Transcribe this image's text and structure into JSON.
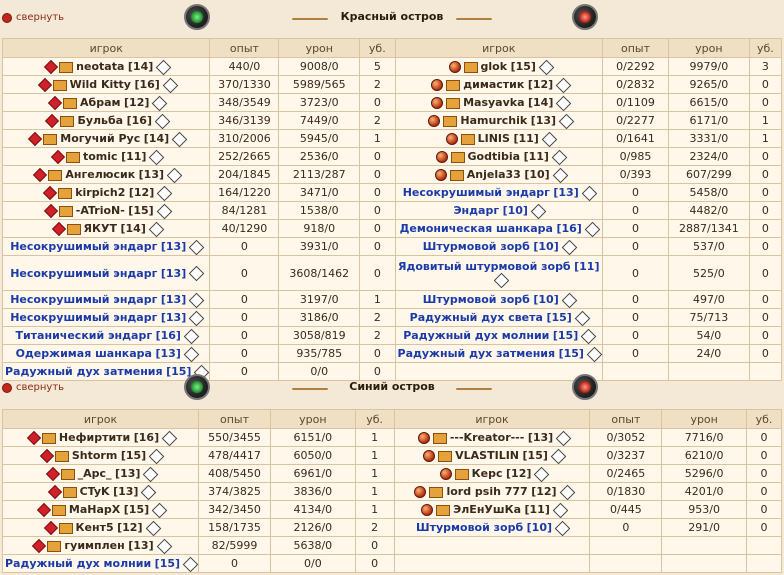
{
  "section1": {
    "collapse_label": "свернуть",
    "title": "Красный остров",
    "headers": [
      "игрок",
      "опыт",
      "урон",
      "уб.",
      "игрок",
      "опыт",
      "урон",
      "уб."
    ],
    "left": [
      {
        "name": "neotata",
        "level": "[14]",
        "exp": "440/0",
        "dmg": "9008/0",
        "kills": "5",
        "npc": false
      },
      {
        "name": "Wild Kitty",
        "level": "[16]",
        "exp": "370/1330",
        "dmg": "5989/565",
        "kills": "2",
        "npc": false
      },
      {
        "name": "Абрам",
        "level": "[12]",
        "exp": "348/3549",
        "dmg": "3723/0",
        "kills": "0",
        "npc": false
      },
      {
        "name": "Бульба",
        "level": "[16]",
        "exp": "346/3139",
        "dmg": "7449/0",
        "kills": "2",
        "npc": false
      },
      {
        "name": "Могучий Рус",
        "level": "[14]",
        "exp": "310/2006",
        "dmg": "5945/0",
        "kills": "1",
        "npc": false
      },
      {
        "name": "tomic",
        "level": "[11]",
        "exp": "252/2665",
        "dmg": "2536/0",
        "kills": "0",
        "npc": false
      },
      {
        "name": "Ангелюсик",
        "level": "[13]",
        "exp": "204/1845",
        "dmg": "2113/287",
        "kills": "0",
        "npc": false
      },
      {
        "name": "kirpich2",
        "level": "[12]",
        "exp": "164/1220",
        "dmg": "3471/0",
        "kills": "0",
        "npc": false
      },
      {
        "name": "-ATrioN-",
        "level": "[15]",
        "exp": "84/1281",
        "dmg": "1538/0",
        "kills": "0",
        "npc": false
      },
      {
        "name": "ЯКУТ",
        "level": "[14]",
        "exp": "40/1290",
        "dmg": "918/0",
        "kills": "0",
        "npc": false
      },
      {
        "name": "Несокрушимый эндарг",
        "level": "[13]",
        "exp": "0",
        "dmg": "3931/0",
        "kills": "0",
        "npc": true
      },
      {
        "name": "Несокрушимый эндарг",
        "level": "[13]",
        "exp": "0",
        "dmg": "3608/1462",
        "kills": "0",
        "npc": true
      },
      {
        "name": "Несокрушимый эндарг",
        "level": "[13]",
        "exp": "0",
        "dmg": "3197/0",
        "kills": "1",
        "npc": true
      },
      {
        "name": "Несокрушимый эндарг",
        "level": "[13]",
        "exp": "0",
        "dmg": "3186/0",
        "kills": "2",
        "npc": true
      },
      {
        "name": "Титанический эндарг",
        "level": "[16]",
        "exp": "0",
        "dmg": "3058/819",
        "kills": "2",
        "npc": true
      },
      {
        "name": "Одержимая шанкара",
        "level": "[13]",
        "exp": "0",
        "dmg": "935/785",
        "kills": "0",
        "npc": true
      },
      {
        "name": "Радужный дух затмения",
        "level": "[15]",
        "exp": "0",
        "dmg": "0/0",
        "kills": "0",
        "npc": true
      }
    ],
    "right": [
      {
        "name": "glok",
        "level": "[15]",
        "exp": "0/2292",
        "dmg": "9979/0",
        "kills": "3",
        "npc": false
      },
      {
        "name": "димастик",
        "level": "[12]",
        "exp": "0/2832",
        "dmg": "9265/0",
        "kills": "0",
        "npc": false
      },
      {
        "name": "Masyavka",
        "level": "[14]",
        "exp": "0/1109",
        "dmg": "6615/0",
        "kills": "0",
        "npc": false
      },
      {
        "name": "Hamurchik",
        "level": "[13]",
        "exp": "0/2277",
        "dmg": "6171/0",
        "kills": "1",
        "npc": false
      },
      {
        "name": "LINIS",
        "level": "[11]",
        "exp": "0/1641",
        "dmg": "3331/0",
        "kills": "1",
        "npc": false
      },
      {
        "name": "Godtibia",
        "level": "[11]",
        "exp": "0/985",
        "dmg": "2324/0",
        "kills": "0",
        "npc": false
      },
      {
        "name": "Anjela33",
        "level": "[10]",
        "exp": "0/393",
        "dmg": "607/299",
        "kills": "0",
        "npc": false
      },
      {
        "name": "Несокрушимый эндарг",
        "level": "[13]",
        "exp": "0",
        "dmg": "5458/0",
        "kills": "0",
        "npc": true
      },
      {
        "name": "Эндарг",
        "level": "[10]",
        "exp": "0",
        "dmg": "4482/0",
        "kills": "0",
        "npc": true
      },
      {
        "name": "Демоническая шанкара",
        "level": "[16]",
        "exp": "0",
        "dmg": "2887/1341",
        "kills": "0",
        "npc": true
      },
      {
        "name": "Штурмовой зорб",
        "level": "[10]",
        "exp": "0",
        "dmg": "537/0",
        "kills": "0",
        "npc": true
      },
      {
        "name": "Ядовитый штурмовой зорб",
        "level": "[11]",
        "exp": "0",
        "dmg": "525/0",
        "kills": "0",
        "npc": true
      },
      {
        "name": "Штурмовой зорб",
        "level": "[10]",
        "exp": "0",
        "dmg": "497/0",
        "kills": "0",
        "npc": true
      },
      {
        "name": "Радужный дух света",
        "level": "[15]",
        "exp": "0",
        "dmg": "75/713",
        "kills": "0",
        "npc": true
      },
      {
        "name": "Радужный дух молнии",
        "level": "[15]",
        "exp": "0",
        "dmg": "54/0",
        "kills": "0",
        "npc": true
      },
      {
        "name": "Радужный дух затмения",
        "level": "[15]",
        "exp": "0",
        "dmg": "24/0",
        "kills": "0",
        "npc": true
      }
    ]
  },
  "section2": {
    "collapse_label": "свернуть",
    "title": "Синий остров",
    "headers": [
      "игрок",
      "опыт",
      "урон",
      "уб.",
      "игрок",
      "опыт",
      "урон",
      "уб."
    ],
    "left": [
      {
        "name": "Нефиртити",
        "level": "[16]",
        "exp": "550/3455",
        "dmg": "6151/0",
        "kills": "1",
        "npc": false
      },
      {
        "name": "Shtorm",
        "level": "[15]",
        "exp": "478/4417",
        "dmg": "6050/0",
        "kills": "1",
        "npc": false
      },
      {
        "name": "_Apc_",
        "level": "[13]",
        "exp": "408/5450",
        "dmg": "6961/0",
        "kills": "1",
        "npc": false
      },
      {
        "name": "CTyK",
        "level": "[13]",
        "exp": "374/3825",
        "dmg": "3836/0",
        "kills": "1",
        "npc": false
      },
      {
        "name": "МаНарХ",
        "level": "[15]",
        "exp": "342/3450",
        "dmg": "4134/0",
        "kills": "1",
        "npc": false
      },
      {
        "name": "Кент5",
        "level": "[12]",
        "exp": "158/1735",
        "dmg": "2126/0",
        "kills": "2",
        "npc": false
      },
      {
        "name": "гуимплен",
        "level": "[13]",
        "exp": "82/5999",
        "dmg": "5638/0",
        "kills": "0",
        "npc": false
      },
      {
        "name": "Радужный дух молнии",
        "level": "[15]",
        "exp": "0",
        "dmg": "0/0",
        "kills": "0",
        "npc": true
      }
    ],
    "right": [
      {
        "name": "---Kreator---",
        "level": "[13]",
        "exp": "0/3052",
        "dmg": "7716/0",
        "kills": "0",
        "npc": false
      },
      {
        "name": "VLASTILIN",
        "level": "[15]",
        "exp": "0/3237",
        "dmg": "6210/0",
        "kills": "0",
        "npc": false
      },
      {
        "name": "Керс",
        "level": "[12]",
        "exp": "0/2465",
        "dmg": "5296/0",
        "kills": "0",
        "npc": false
      },
      {
        "name": "lord psih 777",
        "level": "[12]",
        "exp": "0/1830",
        "dmg": "4201/0",
        "kills": "0",
        "npc": false
      },
      {
        "name": "ЭлЕнУшКа",
        "level": "[11]",
        "exp": "0/445",
        "dmg": "953/0",
        "kills": "0",
        "npc": false
      },
      {
        "name": "Штурмовой зорб",
        "level": "[10]",
        "exp": "0",
        "dmg": "291/0",
        "kills": "0",
        "npc": true
      }
    ]
  },
  "icons": {
    "team_left": "red-gem-icon",
    "team_right": "fire-orb-icon",
    "clan": "clan-badge-icon",
    "info": "info-diamond-icon",
    "orb_left": "green-orb-icon",
    "orb_right": "red-orb-icon"
  }
}
